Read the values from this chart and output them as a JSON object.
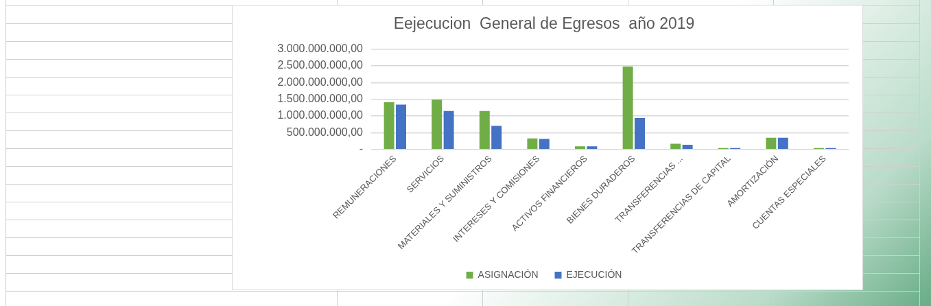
{
  "chart_data": {
    "type": "bar",
    "title": "Eejecucion  General de Egresos  año 2019",
    "categories": [
      "REMUNERACIONES",
      "SERVICIOS",
      "MATERIALES Y SUMINISTROS",
      "INTERESES Y COMISIONES",
      "ACTIVOS FINANCIEROS",
      "BIENES DURADEROS",
      "TRANSFERENCIAS ...",
      "TRANSFERENCIAS DE CAPITAL",
      "AMORTIZACIÓN",
      "CUENTAS ESPECIALES"
    ],
    "series": [
      {
        "name": "ASIGNACIÓN",
        "color": "#70ad47",
        "values": [
          1410000000,
          1490000000,
          1150000000,
          330000000,
          90000000,
          2480000000,
          170000000,
          40000000,
          350000000,
          40000000
        ]
      },
      {
        "name": "EJECUCIÓN",
        "color": "#4472c4",
        "values": [
          1340000000,
          1150000000,
          700000000,
          310000000,
          90000000,
          940000000,
          140000000,
          40000000,
          350000000,
          40000000
        ]
      }
    ],
    "ylim": [
      0,
      3000000000
    ],
    "yticks": [
      {
        "value": 0,
        "label": "-"
      },
      {
        "value": 500000000,
        "label": "500.000.000,00"
      },
      {
        "value": 1000000000,
        "label": "1.000.000.000,00"
      },
      {
        "value": 1500000000,
        "label": "1.500.000.000,00"
      },
      {
        "value": 2000000000,
        "label": "2.000.000.000,00"
      },
      {
        "value": 2500000000,
        "label": "2.500.000.000,00"
      },
      {
        "value": 3000000000,
        "label": "3.000.000.000,00"
      }
    ],
    "grid": "y",
    "legend": "bottom"
  }
}
